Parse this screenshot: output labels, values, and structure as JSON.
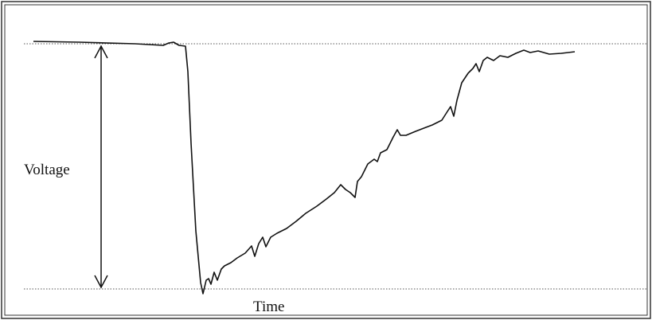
{
  "labels": {
    "y_axis": "Voltage",
    "x_axis": "Time"
  }
}
